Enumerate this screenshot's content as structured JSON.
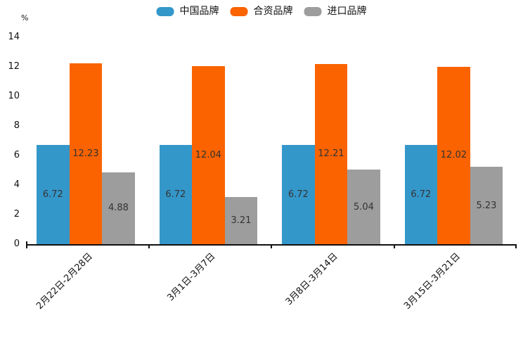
{
  "chart_data": {
    "type": "bar",
    "title": "",
    "unit_label": "%",
    "categories": [
      "2月22日-2月28日",
      "3月1日-3月7日",
      "3月8日-3月14日",
      "3月15日-3月21日"
    ],
    "series": [
      {
        "name": "中国品牌",
        "color": "#3497ca",
        "values": [
          6.72,
          6.72,
          6.72,
          6.72
        ]
      },
      {
        "name": "合资品牌",
        "color": "#fa6300",
        "values": [
          12.23,
          12.04,
          12.21,
          12.02
        ]
      },
      {
        "name": "进口品牌",
        "color": "#9d9d9d",
        "values": [
          4.88,
          3.21,
          5.04,
          5.23
        ]
      }
    ],
    "y_axis": {
      "min": 0,
      "max": 14,
      "step": 2,
      "ticks": [
        0,
        2,
        4,
        6,
        8,
        10,
        12,
        14
      ]
    },
    "legend_position": "top",
    "grid": false,
    "bar_label_color": "#333333",
    "axis_color": "#111111"
  }
}
